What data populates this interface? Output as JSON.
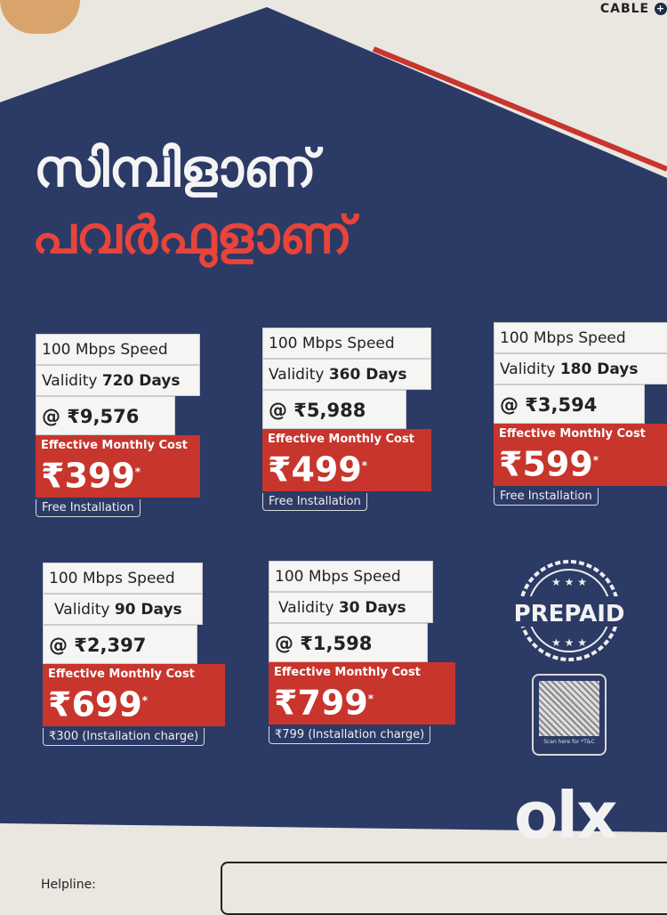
{
  "brand": {
    "name": "CABLE",
    "plus": "+"
  },
  "headline": {
    "line1": "സിമ്പിളാണ്",
    "line2": "പവർഫുളാണ്"
  },
  "colors": {
    "background": "#2c3a66",
    "accent": "#c7352d",
    "paper": "#e9e7e0"
  },
  "plans": [
    {
      "speed": "100 Mbps Speed",
      "validity_label": "Validity",
      "validity": "720 Days",
      "price": "@ ₹9,576",
      "cost_label": "Effective Monthly Cost",
      "cost": "₹399",
      "note": "Free Installation"
    },
    {
      "speed": "100 Mbps Speed",
      "validity_label": "Validity",
      "validity": "360 Days",
      "price": "@ ₹5,988",
      "cost_label": "Effective Monthly Cost",
      "cost": "₹499",
      "note": "Free Installation"
    },
    {
      "speed": "100 Mbps Speed",
      "validity_label": "Validity",
      "validity": "180 Days",
      "price": "@ ₹3,594",
      "cost_label": "Effective Monthly Cost",
      "cost": "₹599",
      "note": "Free Installation"
    },
    {
      "speed": "100 Mbps Speed",
      "validity_label": "Validity",
      "validity": "90 Days",
      "price": "@ ₹2,397",
      "cost_label": "Effective Monthly Cost",
      "cost": "₹699",
      "note": "₹300 (Installation charge)"
    },
    {
      "speed": "100 Mbps Speed",
      "validity_label": "Validity",
      "validity": "30 Days",
      "price": "@ ₹1,598",
      "cost_label": "Effective Monthly Cost",
      "cost": "₹799",
      "note": "₹799 (Installation charge)"
    }
  ],
  "asterisk": "*",
  "badge": {
    "text": "PREPAID",
    "icon": "star-seal-icon"
  },
  "qr": {
    "caption": "Scan here for *T&C"
  },
  "watermark": "olx",
  "footer": {
    "helpline": "Helpline:"
  }
}
